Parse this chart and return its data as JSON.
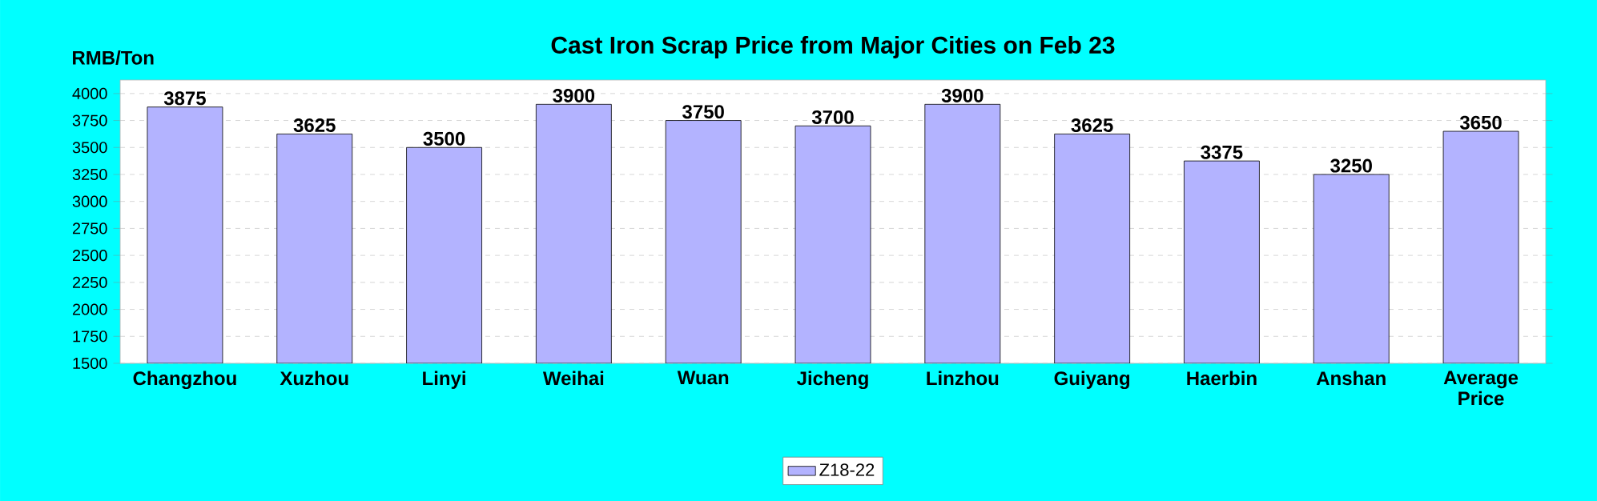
{
  "chart_data": {
    "type": "bar",
    "title": "Cast Iron Scrap  Price from Major Cities on Feb 23",
    "ylabel": "RMB/Ton",
    "categories": [
      "Changzhou",
      "Xuzhou",
      "Linyi",
      "Weihai",
      "Wuan",
      "Jicheng",
      "Linzhou",
      "Guiyang",
      "Haerbin",
      "Anshan",
      "Average Price"
    ],
    "series": [
      {
        "name": "Z18-22",
        "color": "#b3b3ff",
        "values": [
          3875,
          3625,
          3500,
          3900,
          3750,
          3700,
          3900,
          3625,
          3375,
          3250,
          3650
        ]
      }
    ],
    "ylim": [
      1500,
      4125
    ],
    "yticks": [
      1500,
      1750,
      2000,
      2250,
      2500,
      2750,
      3000,
      3250,
      3500,
      3750,
      4000
    ],
    "data_labels": true,
    "grid": "y",
    "legend": "bottom"
  }
}
